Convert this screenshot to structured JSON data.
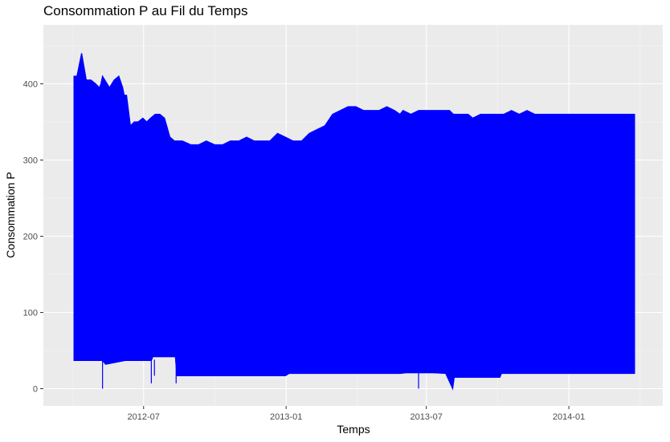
{
  "chart_data": {
    "type": "line",
    "title": "Consommation P au Fil du Temps",
    "xlabel": "Temps",
    "ylabel": "Consommation P",
    "x_range": [
      "2012-04-01",
      "2014-03-28"
    ],
    "ylim": [
      -20,
      475
    ],
    "x_ticks": [
      "2012-07",
      "2013-01",
      "2013-07",
      "2014-01"
    ],
    "x_tick_dates": [
      "2012-07-01",
      "2013-01-01",
      "2013-07-01",
      "2014-01-01"
    ],
    "y_ticks": [
      0,
      100,
      200,
      300,
      400
    ],
    "grid": true,
    "background": "#EBEBEB",
    "line_color": "#0000FF",
    "series": [
      {
        "x": [
          "2012-04-02",
          "2012-04-06",
          "2012-04-12",
          "2012-04-18",
          "2012-04-24",
          "2012-04-30",
          "2012-05-05",
          "2012-05-07",
          "2012-05-09",
          "2012-05-12",
          "2012-05-18",
          "2012-05-24",
          "2012-05-30",
          "2012-06-04",
          "2012-06-06",
          "2012-06-09",
          "2012-06-14",
          "2012-06-19",
          "2012-06-24",
          "2012-06-30",
          "2012-07-05",
          "2012-07-10",
          "2012-07-16",
          "2012-07-22",
          "2012-07-28",
          "2012-08-04",
          "2012-08-10",
          "2012-08-20",
          "2012-08-31",
          "2012-09-10",
          "2012-09-20",
          "2012-10-01",
          "2012-10-11",
          "2012-10-21",
          "2012-11-01",
          "2012-11-11",
          "2012-11-21",
          "2012-12-01",
          "2012-12-11",
          "2012-12-21",
          "2012-12-31",
          "2013-01-10",
          "2013-01-21",
          "2013-01-31",
          "2013-02-10",
          "2013-02-20",
          "2013-03-02",
          "2013-03-12",
          "2013-03-22",
          "2013-04-01",
          "2013-04-11",
          "2013-04-21",
          "2013-05-01",
          "2013-05-11",
          "2013-05-21",
          "2013-05-28",
          "2013-06-01",
          "2013-06-11",
          "2013-06-21",
          "2013-07-01",
          "2013-07-11",
          "2013-07-21",
          "2013-07-31",
          "2013-08-05",
          "2013-08-09",
          "2013-08-20",
          "2013-08-24",
          "2013-08-30",
          "2013-09-09",
          "2013-09-19",
          "2013-09-29",
          "2013-10-09",
          "2013-10-19",
          "2013-10-29",
          "2013-11-08",
          "2013-11-18",
          "2013-11-28",
          "2013-12-08",
          "2013-12-18",
          "2013-12-28",
          "2014-01-07",
          "2014-01-17",
          "2014-01-27",
          "2014-02-06",
          "2014-02-16",
          "2014-02-26",
          "2014-03-08",
          "2014-03-18",
          "2014-03-27"
        ],
        "y": [
          410,
          410,
          440,
          405,
          405,
          400,
          395,
          400,
          410,
          405,
          395,
          405,
          410,
          395,
          385,
          385,
          345,
          350,
          350,
          355,
          350,
          355,
          360,
          360,
          355,
          330,
          325,
          325,
          320,
          320,
          325,
          320,
          320,
          325,
          325,
          330,
          325,
          325,
          325,
          335,
          330,
          325,
          325,
          335,
          340,
          345,
          360,
          365,
          370,
          370,
          365,
          365,
          365,
          370,
          365,
          360,
          365,
          360,
          365,
          365,
          365,
          365,
          365,
          360,
          360,
          360,
          360,
          355,
          360,
          360,
          360,
          360,
          365,
          360,
          365,
          360,
          360,
          360,
          360,
          360,
          360,
          360,
          360,
          360,
          360,
          360,
          360,
          360,
          360
        ]
      },
      {
        "x": [
          "2012-04-02",
          "2012-05-09",
          "2012-05-13",
          "2012-06-07",
          "2012-07-11",
          "2012-07-13",
          "2012-08-11",
          "2012-08-13",
          "2012-09-15",
          "2012-10-20",
          "2012-11-25",
          "2012-12-31",
          "2013-01-05",
          "2013-02-15",
          "2013-03-25",
          "2013-04-30",
          "2013-05-28",
          "2013-06-05",
          "2013-07-10",
          "2013-07-26",
          "2013-08-04",
          "2013-08-06",
          "2013-08-27",
          "2013-08-29",
          "2013-09-20",
          "2013-10-04",
          "2013-10-06",
          "2013-11-15",
          "2013-12-20",
          "2014-01-30",
          "2014-03-01",
          "2014-03-27"
        ],
        "y": [
          37,
          37,
          32,
          37,
          37,
          42,
          42,
          17,
          17,
          17,
          17,
          17,
          20,
          20,
          20,
          20,
          20,
          21,
          21,
          20,
          0,
          15,
          15,
          15,
          15,
          15,
          20,
          20,
          20,
          20,
          20,
          20
        ]
      }
    ],
    "dips": [
      {
        "x": "2012-05-09",
        "y": 0
      },
      {
        "x": "2012-07-11",
        "y": 7
      },
      {
        "x": "2012-07-15",
        "y": 17
      },
      {
        "x": "2012-08-12",
        "y": 7
      },
      {
        "x": "2013-06-21",
        "y": 0
      }
    ]
  }
}
